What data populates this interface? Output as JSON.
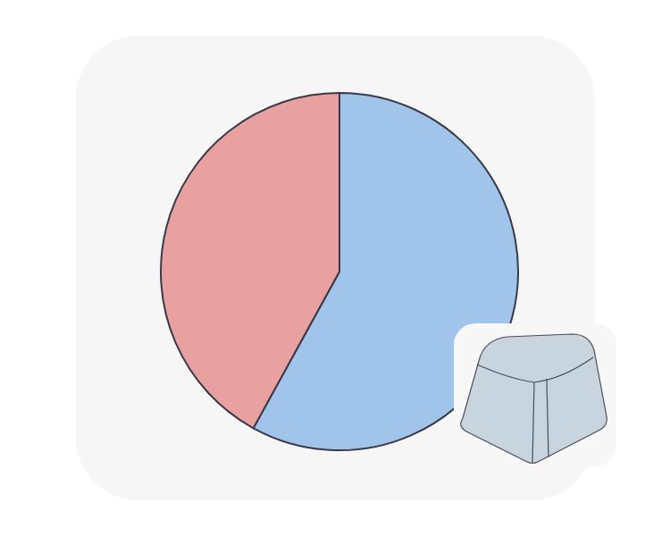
{
  "chart_data": {
    "type": "pie",
    "values": [
      58,
      42
    ],
    "colors": [
      "#a0c4ea",
      "#e8a0a0"
    ]
  }
}
